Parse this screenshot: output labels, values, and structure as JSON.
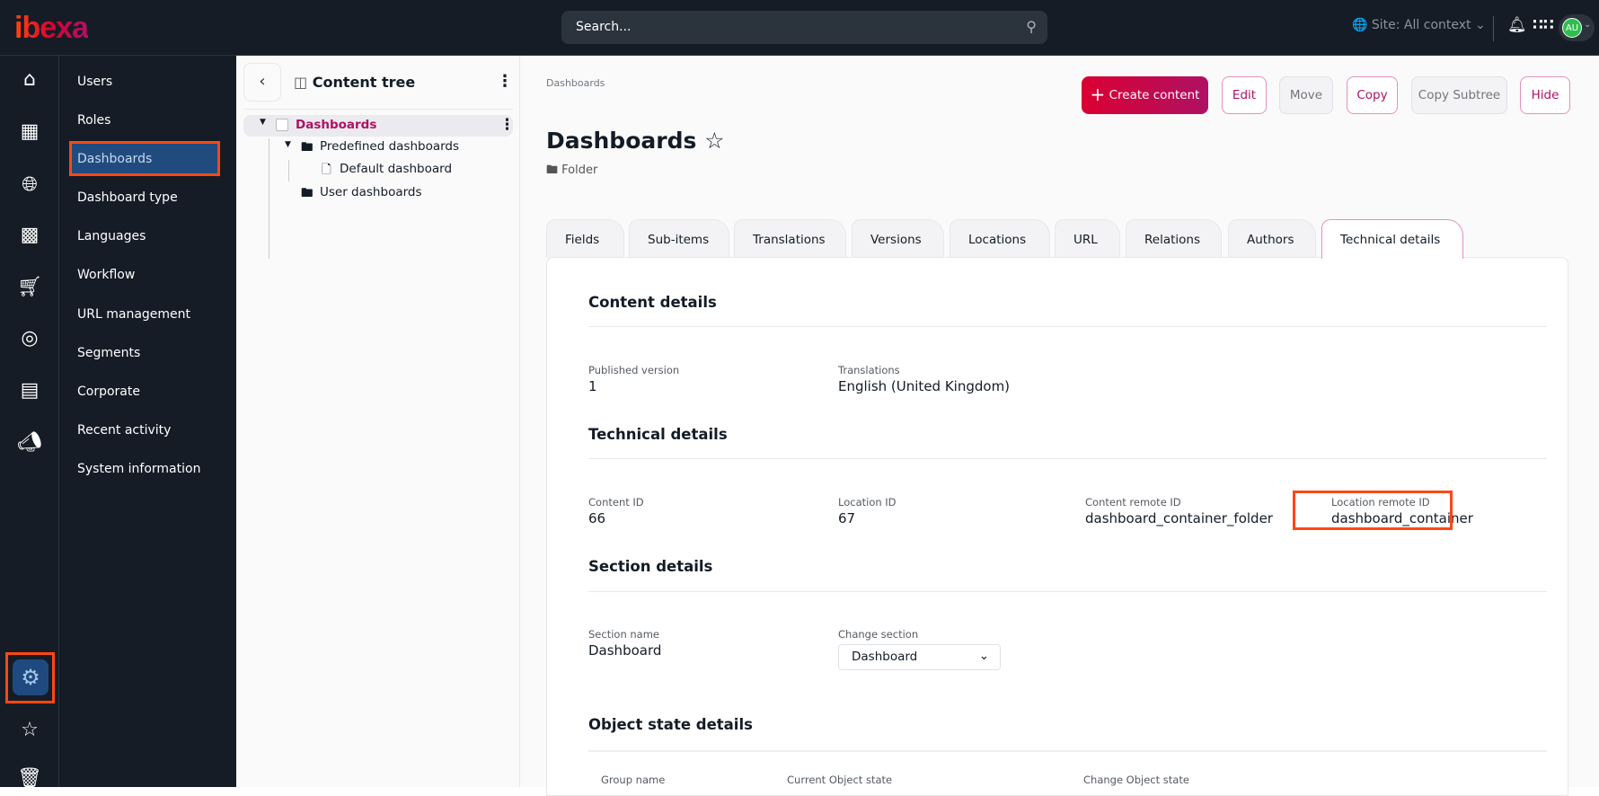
{
  "topbar": {
    "logo": "ibexa",
    "search_placeholder": "Search...",
    "site_context": "Site: All context",
    "avatar_initials": "AU"
  },
  "rail": {
    "icons": [
      "home-icon",
      "structure-icon",
      "globe-icon",
      "product-catalog-icon",
      "cart-icon",
      "personalization-icon",
      "forms-icon",
      "megaphone-icon",
      "settings-icon",
      "star-icon",
      "trash-icon"
    ],
    "active": "settings-icon"
  },
  "submenu": {
    "items": [
      "Users",
      "Roles",
      "Dashboards",
      "Dashboard type",
      "Languages",
      "Workflow",
      "URL management",
      "Segments",
      "Corporate",
      "Recent activity",
      "System information"
    ],
    "active": "Dashboards"
  },
  "tree": {
    "title": "Content tree",
    "root": "Dashboards",
    "children": [
      "Predefined dashboards",
      "Default dashboard",
      "User dashboards"
    ]
  },
  "main": {
    "breadcrumb": "Dashboards",
    "title": "Dashboards",
    "content_type": "Folder",
    "actions": {
      "create": "Create content",
      "edit": "Edit",
      "move": "Move",
      "copy": "Copy",
      "copy_subtree": "Copy Subtree",
      "hide": "Hide"
    },
    "tabs": [
      "Fields",
      "Sub-items",
      "Translations",
      "Versions",
      "Locations",
      "URL",
      "Relations",
      "Authors",
      "Technical details"
    ],
    "active_tab": "Technical details",
    "content_details": {
      "heading": "Content details",
      "published_label": "Published version",
      "published": "1",
      "translations_label": "Translations",
      "translations": "English (United Kingdom)"
    },
    "technical_details": {
      "heading": "Technical details",
      "content_id_label": "Content ID",
      "content_id": "66",
      "location_id_label": "Location ID",
      "location_id": "67",
      "content_remote_label": "Content remote ID",
      "content_remote": "dashboard_container_folder",
      "location_remote_label": "Location remote ID",
      "location_remote": "dashboard_container"
    },
    "section_details": {
      "heading": "Section details",
      "name_label": "Section name",
      "name": "Dashboard",
      "change_label": "Change section",
      "change_value": "Dashboard"
    },
    "object_state": {
      "heading": "Object state details",
      "columns": [
        "Group name",
        "Current Object state",
        "Change Object state"
      ]
    }
  },
  "colors": {
    "accent": "#ae1164",
    "highlight": "#ff4713",
    "nav_bg": "#151c26",
    "active_bg": "#214b7f"
  }
}
